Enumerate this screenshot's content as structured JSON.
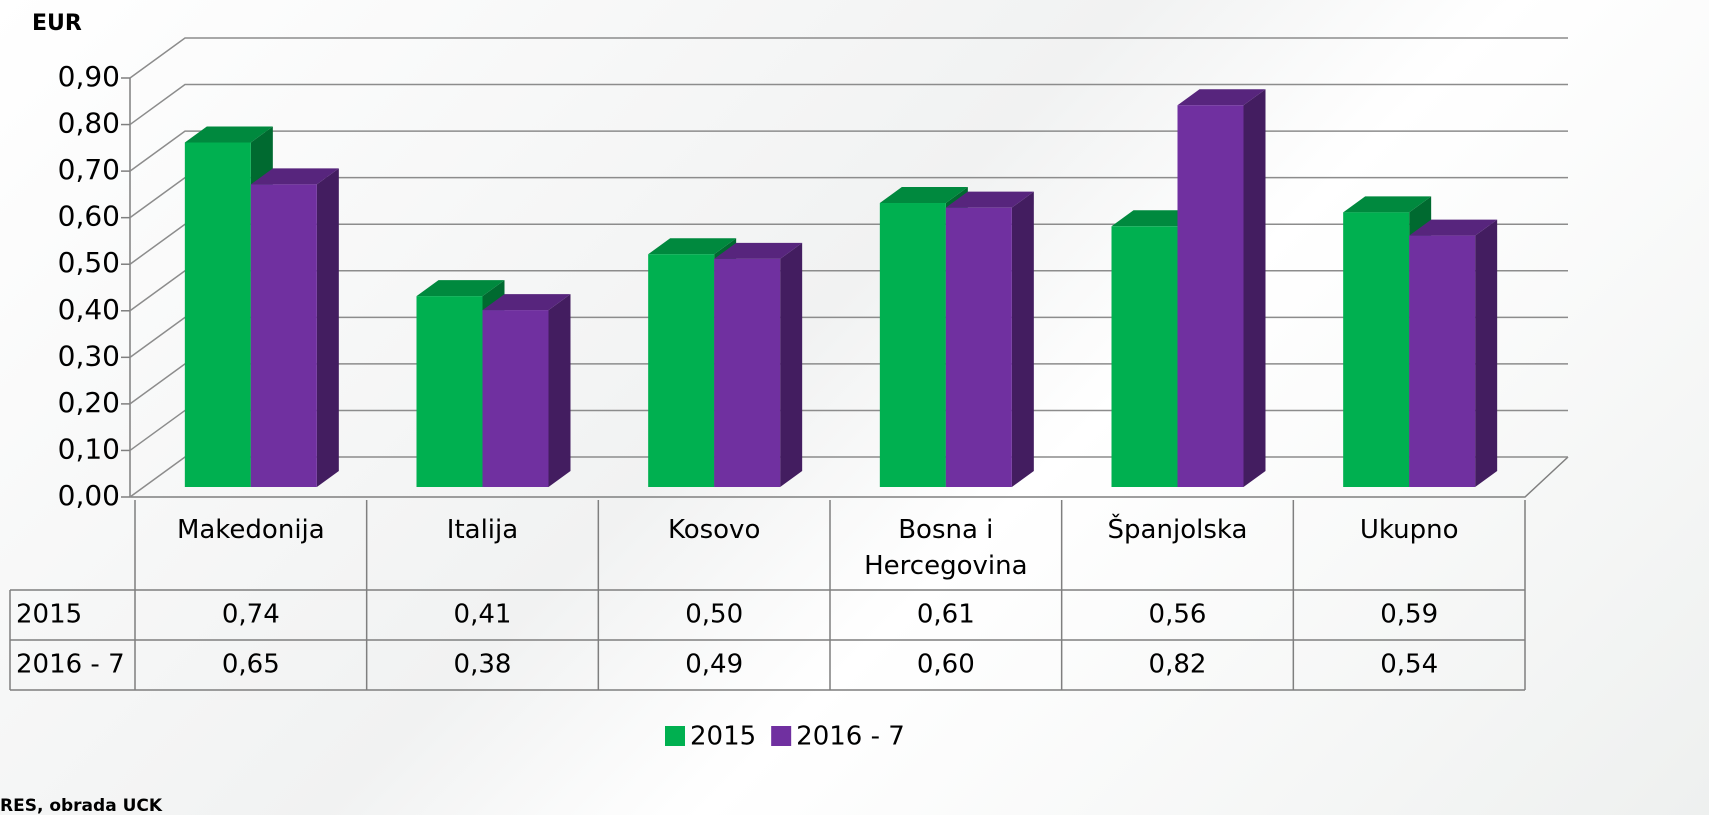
{
  "chart_data": {
    "type": "bar3d",
    "ylabel": "EUR",
    "source": "RES, obrada UCK",
    "categories": [
      "Makedonija",
      "Italija",
      "Kosovo",
      "Bosna i Hercegovina",
      "Španjolska",
      "Ukupno"
    ],
    "series": [
      {
        "name": "2015",
        "color": "#00b050",
        "values": [
          0.74,
          0.41,
          0.5,
          0.61,
          0.56,
          0.59
        ],
        "value_labels": [
          "0,74",
          "0,41",
          "0,50",
          "0,61",
          "0,56",
          "0,59"
        ]
      },
      {
        "name": "2016 - 7",
        "color": "#7030a0",
        "values": [
          0.65,
          0.38,
          0.49,
          0.6,
          0.82,
          0.54
        ],
        "value_labels": [
          "0,65",
          "0,38",
          "0,49",
          "0,60",
          "0,82",
          "0,54"
        ]
      }
    ],
    "ylim": [
      0,
      0.9
    ],
    "yticks": [
      {
        "value": 0,
        "label": "0,00"
      },
      {
        "value": 0.1,
        "label": "0,10"
      },
      {
        "value": 0.2,
        "label": "0,20"
      },
      {
        "value": 0.3,
        "label": "0,30"
      },
      {
        "value": 0.4,
        "label": "0,40"
      },
      {
        "value": 0.5,
        "label": "0,50"
      },
      {
        "value": 0.6,
        "label": "0,60"
      },
      {
        "value": 0.7,
        "label": "0,70"
      },
      {
        "value": 0.8,
        "label": "0,80"
      },
      {
        "value": 0.9,
        "label": "0,90"
      }
    ],
    "grid": true,
    "legend": "bottom"
  }
}
